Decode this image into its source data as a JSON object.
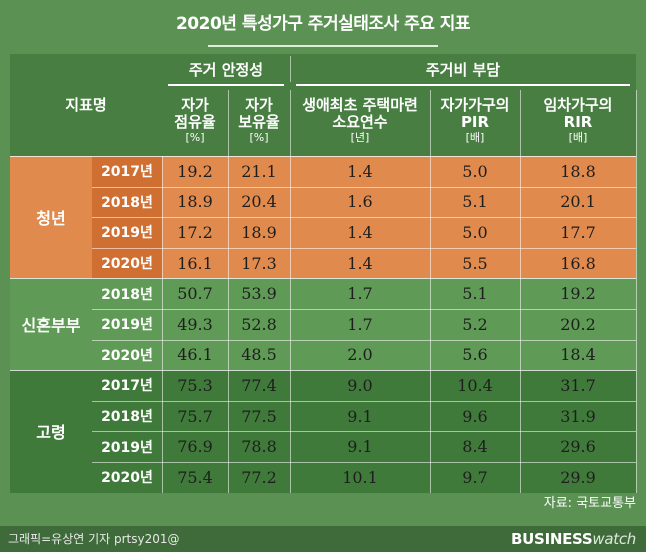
{
  "title": "2020년 특성가구 주거실태조사 주요 지표",
  "source": "자료: 국토교통부",
  "credit": "그래픽=유상연 기자 prtsy201@",
  "logo": {
    "part1": "BUSINESS",
    "part2": "watch"
  },
  "colors": {
    "background": "#5b9254",
    "panel": "#487e42",
    "youth": "#e08a4e",
    "youth_year": "#cf6f32",
    "newlywed": "#5f9a56",
    "elderly": "#3f7a3a"
  },
  "headers": {
    "indicator": "지표명",
    "group_stability": "주거 안정성",
    "group_cost": "주거비 부담",
    "columns": [
      {
        "label1": "자가",
        "label2": "점유율",
        "unit": "[%]"
      },
      {
        "label1": "자가",
        "label2": "보유율",
        "unit": "[%]"
      },
      {
        "label1": "생애최초 주택마련",
        "label2": "소요연수",
        "unit": "[년]"
      },
      {
        "label1": "자가가구의",
        "label2": "PIR",
        "unit": "[배]"
      },
      {
        "label1": "임차가구의",
        "label2": "RIR",
        "unit": "[배]"
      }
    ]
  },
  "chart_data": {
    "type": "table",
    "title": "2020년 특성가구 주거실태조사 주요 지표",
    "columns": [
      "자가 점유율 [%]",
      "자가 보유율 [%]",
      "생애최초 주택마련 소요연수 [년]",
      "자가가구의 PIR [배]",
      "임차가구의 RIR [배]"
    ],
    "groups": [
      {
        "name": "청년",
        "rows": [
          {
            "year": "2017년",
            "values": [
              "19.2",
              "21.1",
              "1.4",
              "5.0",
              "18.8"
            ]
          },
          {
            "year": "2018년",
            "values": [
              "18.9",
              "20.4",
              "1.6",
              "5.1",
              "20.1"
            ]
          },
          {
            "year": "2019년",
            "values": [
              "17.2",
              "18.9",
              "1.4",
              "5.0",
              "17.7"
            ]
          },
          {
            "year": "2020년",
            "values": [
              "16.1",
              "17.3",
              "1.4",
              "5.5",
              "16.8"
            ]
          }
        ]
      },
      {
        "name": "신혼부부",
        "rows": [
          {
            "year": "2018년",
            "values": [
              "50.7",
              "53.9",
              "1.7",
              "5.1",
              "19.2"
            ]
          },
          {
            "year": "2019년",
            "values": [
              "49.3",
              "52.8",
              "1.7",
              "5.2",
              "20.2"
            ]
          },
          {
            "year": "2020년",
            "values": [
              "46.1",
              "48.5",
              "2.0",
              "5.6",
              "18.4"
            ]
          }
        ]
      },
      {
        "name": "고령",
        "rows": [
          {
            "year": "2017년",
            "values": [
              "75.3",
              "77.4",
              "9.0",
              "10.4",
              "31.7"
            ]
          },
          {
            "year": "2018년",
            "values": [
              "75.7",
              "77.5",
              "9.1",
              "9.6",
              "31.9"
            ]
          },
          {
            "year": "2019년",
            "values": [
              "76.9",
              "78.8",
              "9.1",
              "8.4",
              "29.6"
            ]
          },
          {
            "year": "2020년",
            "values": [
              "75.4",
              "77.2",
              "10.1",
              "9.7",
              "29.9"
            ]
          }
        ]
      }
    ]
  }
}
